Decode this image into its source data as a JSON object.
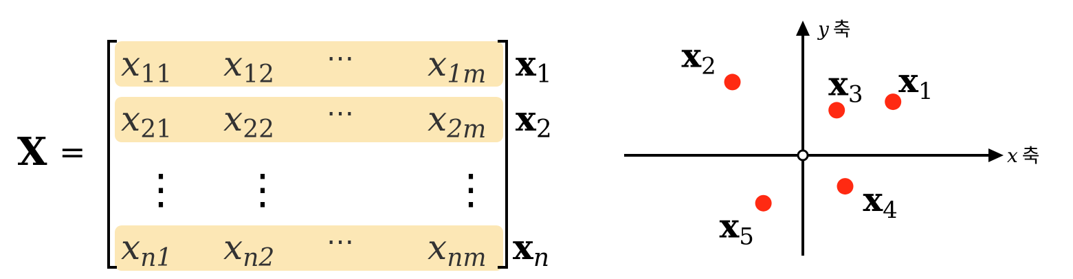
{
  "matrix": {
    "symbol": "X",
    "equals": "=",
    "highlight_color": "#fce7b5",
    "rows": [
      {
        "cells": [
          {
            "base": "x",
            "sub": "11"
          },
          {
            "base": "x",
            "sub": "12"
          },
          {
            "base": "⋯",
            "sub": ""
          },
          {
            "base": "x",
            "sub": "1m"
          }
        ],
        "label": {
          "base": "x",
          "sub": "1"
        }
      },
      {
        "cells": [
          {
            "base": "x",
            "sub": "21"
          },
          {
            "base": "x",
            "sub": "22"
          },
          {
            "base": "⋯",
            "sub": ""
          },
          {
            "base": "x",
            "sub": "2m"
          }
        ],
        "label": {
          "base": "x",
          "sub": "2"
        }
      },
      {
        "cells": [
          {
            "base": "⋮",
            "sub": ""
          },
          {
            "base": "⋮",
            "sub": ""
          },
          {
            "base": "",
            "sub": ""
          },
          {
            "base": "⋮",
            "sub": ""
          }
        ],
        "label": {
          "base": "",
          "sub": ""
        }
      },
      {
        "cells": [
          {
            "base": "x",
            "sub": "n1"
          },
          {
            "base": "x",
            "sub": "n2"
          },
          {
            "base": "⋯",
            "sub": ""
          },
          {
            "base": "x",
            "sub": "nm"
          }
        ],
        "label": {
          "base": "x",
          "sub": "n"
        }
      }
    ]
  },
  "plot": {
    "x_axis_label": {
      "var": "x",
      "word": "축"
    },
    "y_axis_label": {
      "var": "y",
      "word": "축"
    },
    "point_color": "#ff2a12",
    "points": [
      {
        "base": "x",
        "sub": "1",
        "x": 1.6,
        "y": 0.95
      },
      {
        "base": "x",
        "sub": "2",
        "x": -1.25,
        "y": 1.3
      },
      {
        "base": "x",
        "sub": "3",
        "x": 0.6,
        "y": 0.8
      },
      {
        "base": "x",
        "sub": "4",
        "x": 0.75,
        "y": -0.55
      },
      {
        "base": "x",
        "sub": "5",
        "x": -0.7,
        "y": -0.85
      }
    ]
  }
}
